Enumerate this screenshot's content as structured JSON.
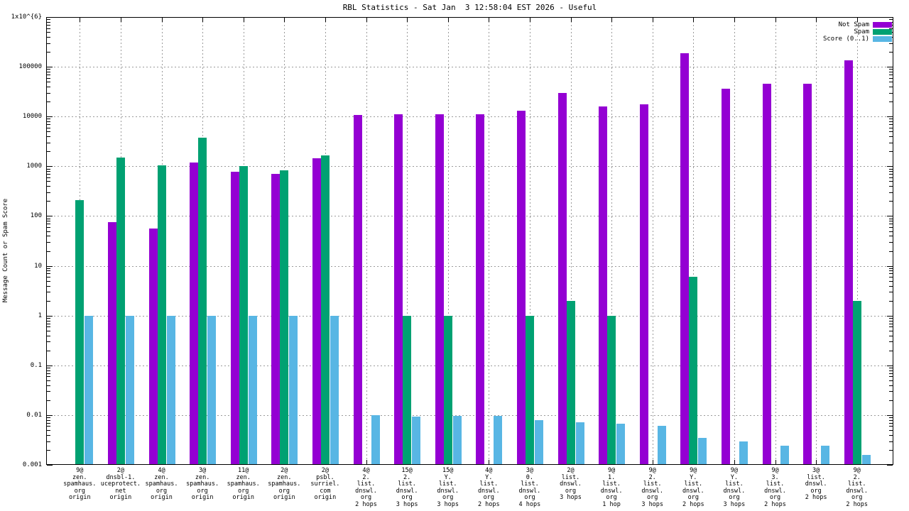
{
  "chart_data": {
    "type": "bar",
    "title": "RBL Statistics - Sat Jan  3 12:58:04 EST 2026 - Useful",
    "ylabel": "Message Count or Spam Score",
    "xlabel": "",
    "y_scale": "log",
    "ylim": [
      0.001,
      1000000
    ],
    "grid": true,
    "legend_position": "top-right-inside",
    "y_ticks": [
      {
        "label": "1x10^{6}",
        "value": 1000000
      },
      {
        "label": "100000",
        "value": 100000
      },
      {
        "label": "10000",
        "value": 10000
      },
      {
        "label": "1000",
        "value": 1000
      },
      {
        "label": "100",
        "value": 100
      },
      {
        "label": "10",
        "value": 10
      },
      {
        "label": "1",
        "value": 1
      },
      {
        "label": "0.1",
        "value": 0.1
      },
      {
        "label": "0.01",
        "value": 0.01
      },
      {
        "label": "0.001",
        "value": 0.001
      }
    ],
    "categories": [
      [
        "9@",
        "zen.",
        "spamhaus.",
        "org",
        "origin"
      ],
      [
        "2@",
        "dnsbl-1.",
        "uceprotect.",
        "net",
        "origin"
      ],
      [
        "4@",
        "zen.",
        "spamhaus.",
        "org",
        "origin"
      ],
      [
        "3@",
        "zen.",
        "spamhaus.",
        "org",
        "origin"
      ],
      [
        "11@",
        "zen.",
        "spamhaus.",
        "org",
        "origin"
      ],
      [
        "2@",
        "zen.",
        "spamhaus.",
        "org",
        "origin"
      ],
      [
        "2@",
        "psbl.",
        "surriel.",
        "com",
        "origin"
      ],
      [
        "4@",
        "2.",
        "list.",
        "dnswl.",
        "org",
        "2 hops"
      ],
      [
        "15@",
        "2.",
        "list.",
        "dnswl.",
        "org",
        "3 hops"
      ],
      [
        "15@",
        "Y.",
        "list.",
        "dnswl.",
        "org",
        "3 hops"
      ],
      [
        "4@",
        "Y.",
        "list.",
        "dnswl.",
        "org",
        "2 hops"
      ],
      [
        "3@",
        "0.",
        "list.",
        "dnswl.",
        "org",
        "4 hops"
      ],
      [
        "2@",
        "list.",
        "dnswl.",
        "org",
        "3 hops"
      ],
      [
        "9@",
        "1.",
        "list.",
        "dnswl.",
        "org",
        "1 hop"
      ],
      [
        "9@",
        "2.",
        "list.",
        "dnswl.",
        "org",
        "3 hops"
      ],
      [
        "9@",
        "Y.",
        "list.",
        "dnswl.",
        "org",
        "2 hops"
      ],
      [
        "9@",
        "Y.",
        "list.",
        "dnswl.",
        "org",
        "3 hops"
      ],
      [
        "9@",
        "3.",
        "list.",
        "dnswl.",
        "org",
        "2 hops"
      ],
      [
        "3@",
        "list.",
        "dnswl.",
        "org",
        "2 hops"
      ],
      [
        "9@",
        "2.",
        "list.",
        "dnswl.",
        "org",
        "2 hops"
      ]
    ],
    "series": [
      {
        "name": "Not Spam",
        "color": "#9400D3",
        "values": [
          null,
          75,
          56,
          1200,
          780,
          700,
          1450,
          10800,
          11200,
          11200,
          11200,
          13000,
          30000,
          16000,
          17500,
          190000,
          36000,
          46000,
          46000,
          135000
        ]
      },
      {
        "name": "Spam",
        "color": "#00A172",
        "values": [
          210,
          1500,
          1050,
          3800,
          1000,
          820,
          1650,
          null,
          1,
          1,
          null,
          1,
          2,
          1,
          null,
          6,
          null,
          null,
          null,
          2
        ]
      },
      {
        "name": "Score (0..1)",
        "color": "#58B6E4",
        "values": [
          1,
          1,
          1,
          1,
          1,
          1,
          1,
          0.01,
          0.0095,
          0.0096,
          0.0097,
          0.008,
          0.0073,
          0.0067,
          0.006,
          0.0035,
          0.003,
          0.0024,
          0.0024,
          0.0016
        ]
      }
    ]
  }
}
